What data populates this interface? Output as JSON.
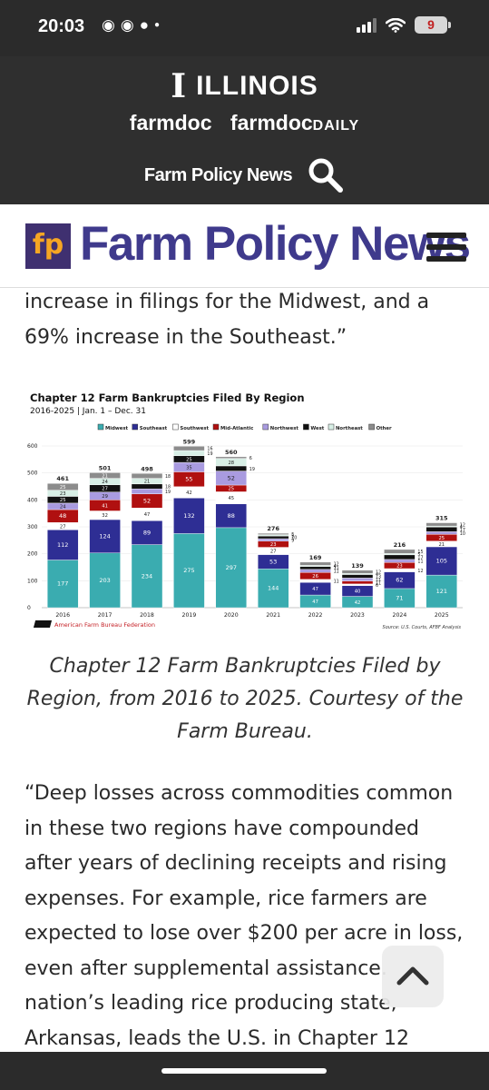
{
  "status_bar": {
    "time": "20:03",
    "icons": [
      "discord-icon",
      "discord-icon",
      "facebook-icon",
      "dot-icon"
    ],
    "battery": "9",
    "battery_color": "#c12020"
  },
  "header": {
    "university": "ILLINOIS",
    "farmdoc": "farmdoc",
    "farmdoc_daily_main": "farmdoc",
    "farmdoc_daily_suffix": "DAILY",
    "section": "Farm Policy News"
  },
  "brand": {
    "logo_text": "fp",
    "name": "Farm Policy News",
    "logo_color": "#3f3070",
    "accent_color": "#f6a623",
    "name_color": "#3f3a8c"
  },
  "article": {
    "para1_line1": "increase in filings for the Midwest, and a",
    "para1_line2": "69% increase in the Southeast.”",
    "caption": "Chapter 12 Farm Bankruptcies Filed by Region, from 2016 to 2025. Courtesy of the Farm Bureau.",
    "para2_lines": [
      "“Deep losses across commodities common",
      "in these two regions have compounded",
      "after years of declining receipts and rising",
      "expenses. For example, rice farmers are",
      "expected to lose over $200 per acre in loss,",
      "even after supplemental assistance.",
      "nation’s leading rice producing state,",
      "Arkansas, leads the U.S. in Chapter 12"
    ]
  },
  "chart_data": {
    "type": "bar",
    "stacked": true,
    "title": "Chapter 12 Farm Bankruptcies Filed By Region",
    "subtitle": "2016-2025 | Jan. 1 – Dec. 31",
    "categories": [
      "2016",
      "2017",
      "2018",
      "2019",
      "2020",
      "2021",
      "2022",
      "2023",
      "2024",
      "2025"
    ],
    "ylim": [
      0,
      600
    ],
    "yticks": [
      0,
      100,
      200,
      300,
      400,
      500,
      600
    ],
    "legend_position": "top",
    "totals": [
      461,
      501,
      498,
      599,
      560,
      276,
      169,
      139,
      216,
      315
    ],
    "series": [
      {
        "name": "Midwest",
        "color": "#3aacb0",
        "values": [
          177,
          203,
          234,
          275,
          297,
          144,
          47,
          42,
          71,
          121
        ]
      },
      {
        "name": "Southeast",
        "color": "#2e2e94",
        "values": [
          112,
          124,
          89,
          132,
          88,
          53,
          47,
          40,
          62,
          105
        ]
      },
      {
        "name": "Southwest",
        "color": "#ffffff",
        "values": [
          27,
          32,
          47,
          42,
          45,
          27,
          11,
          6,
          12,
          21
        ]
      },
      {
        "name": "Mid-Atlantic",
        "color": "#b01010",
        "values": [
          48,
          41,
          52,
          55,
          25,
          23,
          26,
          11,
          23,
          25
        ]
      },
      {
        "name": "Northwest",
        "color": "#a99be0",
        "values": [
          24,
          29,
          19,
          35,
          52,
          9,
          11,
          11,
          11,
          10
        ]
      },
      {
        "name": "West",
        "color": "#111111",
        "values": [
          25,
          27,
          18,
          25,
          19,
          10,
          11,
          13,
          17,
          17
        ]
      },
      {
        "name": "Northeast",
        "color": "#d8efe6",
        "values": [
          23,
          24,
          21,
          19,
          28,
          5,
          4,
          4,
          5,
          4
        ]
      },
      {
        "name": "Other",
        "color": "#8c8c8c",
        "values": [
          25,
          21,
          18,
          16,
          6,
          5,
          12,
          12,
          15,
          12
        ]
      }
    ],
    "brand_text": "American Farm Bureau Federation",
    "source": "Source: U.S. Courts, AFBF Analysis"
  }
}
